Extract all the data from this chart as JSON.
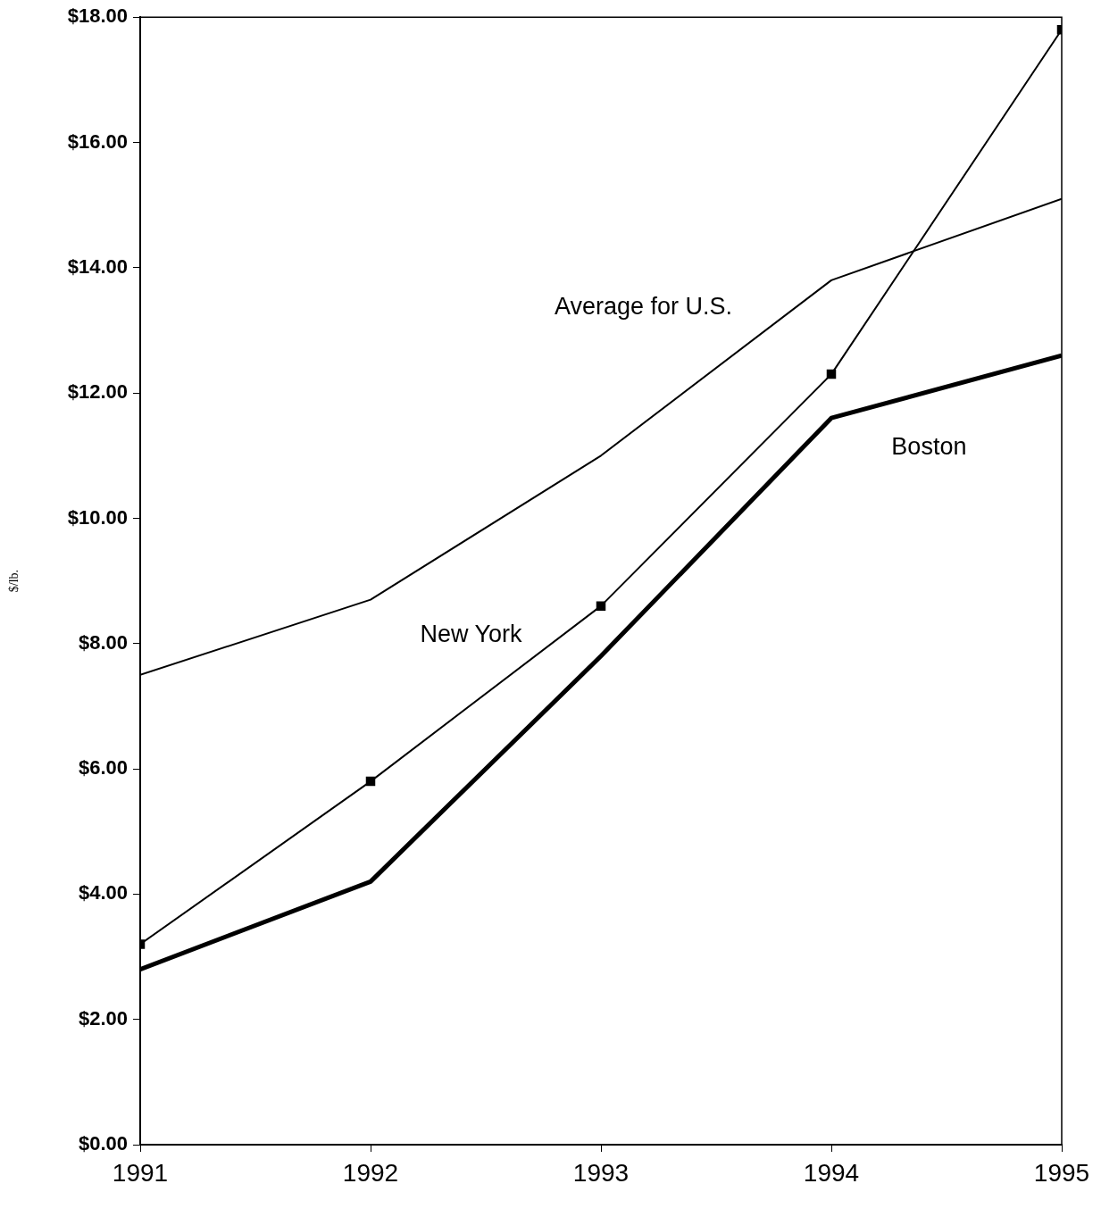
{
  "chart_data": {
    "type": "line",
    "ylabel": "$/lb.",
    "x": [
      1991,
      1992,
      1993,
      1994,
      1995
    ],
    "xlim": [
      1991,
      1995
    ],
    "xticks": [
      1991,
      1992,
      1993,
      1994,
      1995
    ],
    "ylim": [
      0,
      18
    ],
    "yticks": [
      {
        "value": 0,
        "label": "$0.00"
      },
      {
        "value": 2,
        "label": "$2.00"
      },
      {
        "value": 4,
        "label": "$4.00"
      },
      {
        "value": 6,
        "label": "$6.00"
      },
      {
        "value": 8,
        "label": "$8.00"
      },
      {
        "value": 10,
        "label": "$10.00"
      },
      {
        "value": 12,
        "label": "$12.00"
      },
      {
        "value": 14,
        "label": "$14.00"
      },
      {
        "value": 16,
        "label": "$16.00"
      },
      {
        "value": 18,
        "label": "$18.00"
      }
    ],
    "legend": false,
    "series": [
      {
        "name": "Average for U.S.",
        "color": "#000000",
        "marker": "none",
        "values": [
          7.5,
          8.7,
          11.0,
          13.8,
          15.1
        ]
      },
      {
        "name": "New York",
        "color": "#000000",
        "marker": "square",
        "values": [
          3.2,
          5.8,
          8.6,
          12.3,
          17.8
        ]
      },
      {
        "name": "Boston",
        "color": "#000000",
        "marker": "none",
        "values": [
          2.8,
          4.2,
          7.8,
          11.6,
          12.6
        ]
      }
    ]
  }
}
